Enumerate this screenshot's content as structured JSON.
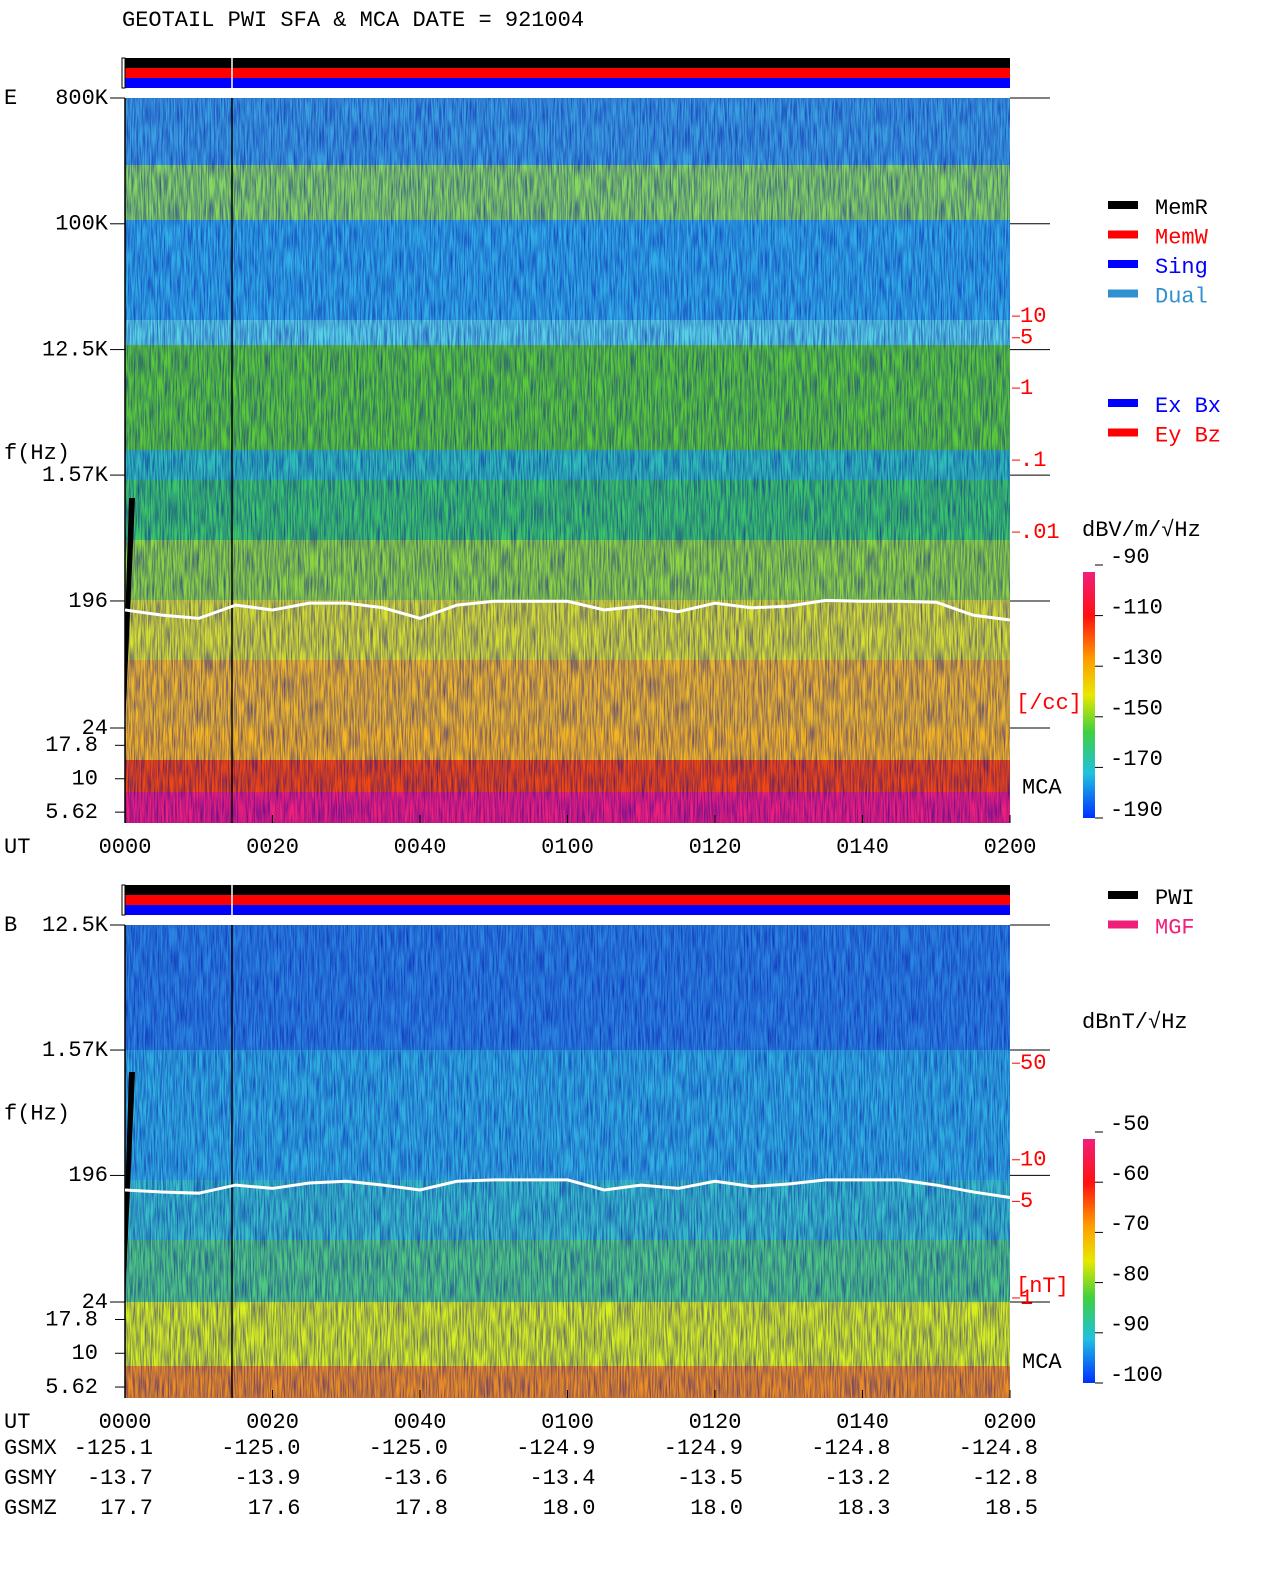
{
  "title": "GEOTAIL  PWI SFA & MCA   DATE = 921004",
  "chart_data": [
    {
      "type": "spectrogram",
      "panel_label": "E",
      "y_label": "f(Hz)",
      "x_label": "UT",
      "mca_label": "MCA",
      "log_y": true,
      "ylim": [
        24,
        800000
      ],
      "yticks": [
        {
          "value": 800000,
          "label": "800K"
        },
        {
          "value": 100000,
          "label": "100K"
        },
        {
          "value": 12500,
          "label": "12.5K"
        },
        {
          "value": 1570,
          "label": "1.57K"
        },
        196,
        24
      ],
      "mca_lim": [
        4.66,
        24
      ],
      "mca_ticks": [
        17.8,
        10,
        5.62
      ],
      "xlim": [
        0,
        120
      ],
      "xticks": [
        {
          "value": 0,
          "label": "0000"
        },
        {
          "value": 20,
          "label": "0020"
        },
        {
          "value": 40,
          "label": "0040"
        },
        {
          "value": 60,
          "label": "0100"
        },
        {
          "value": 80,
          "label": "0120"
        },
        {
          "value": 100,
          "label": "0140"
        },
        {
          "value": 120,
          "label": "0200"
        }
      ],
      "trace": {
        "color": "#ffffff",
        "x": [
          0,
          5,
          10,
          15,
          20,
          25,
          30,
          35,
          40,
          45,
          50,
          55,
          60,
          65,
          70,
          75,
          80,
          85,
          90,
          95,
          100,
          105,
          110,
          115,
          120
        ],
        "values": [
          169,
          155,
          147,
          183,
          169,
          189,
          189,
          175,
          147,
          183,
          195,
          195,
          195,
          169,
          180,
          164,
          189,
          175,
          180,
          198,
          195,
          195,
          192,
          155,
          143
        ]
      },
      "y2lim": [
        1.9e-05,
        10700
      ],
      "y2_color": "#ff0000",
      "y2_unit": "[/cc]",
      "y2ticks": [
        10,
        5,
        1,
        {
          "value": 0.1,
          "label": ".1"
        },
        {
          "value": 0.01,
          "label": ".01"
        }
      ],
      "colorbar": {
        "label": "dBV/m/√Hz",
        "lim": [
          -190,
          -90
        ],
        "ticks": [
          -90,
          -110,
          -130,
          -150,
          -170,
          -190
        ]
      },
      "legend": [
        {
          "name": "MemR",
          "color": "#000000"
        },
        {
          "name": "MemW",
          "color": "#ff0000"
        },
        {
          "name": "Sing",
          "color": "#0000ff"
        },
        {
          "name": "Dual",
          "color": "#3090d0"
        }
      ],
      "legend2": [
        {
          "name": "Ex Bx",
          "color": "#0000ff"
        },
        {
          "name": "Ey Bz",
          "color": "#ff0000"
        }
      ]
    },
    {
      "type": "spectrogram",
      "panel_label": "B",
      "y_label": "f(Hz)",
      "x_label": "UT",
      "mca_label": "MCA",
      "log_y": true,
      "ylim": [
        24,
        12500
      ],
      "yticks": [
        {
          "value": 12500,
          "label": "12.5K"
        },
        {
          "value": 1570,
          "label": "1.57K"
        },
        196,
        24
      ],
      "mca_lim": [
        4.66,
        24
      ],
      "mca_ticks": [
        17.8,
        10,
        5.62
      ],
      "xlim": [
        0,
        120
      ],
      "xticks": [
        {
          "value": 0,
          "label": "0000"
        },
        {
          "value": 20,
          "label": "0020"
        },
        {
          "value": 40,
          "label": "0040"
        },
        {
          "value": 60,
          "label": "0100"
        },
        {
          "value": 80,
          "label": "0120"
        },
        {
          "value": 100,
          "label": "0140"
        },
        {
          "value": 120,
          "label": "0200"
        }
      ],
      "trace": {
        "color": "#ffffff",
        "x": [
          0,
          5,
          10,
          15,
          20,
          25,
          30,
          35,
          40,
          45,
          50,
          55,
          60,
          65,
          70,
          75,
          80,
          85,
          90,
          95,
          100,
          105,
          110,
          115,
          120
        ],
        "values": [
          154,
          149,
          146,
          167,
          158,
          173,
          178,
          167,
          154,
          178,
          182,
          182,
          182,
          154,
          167,
          158,
          178,
          163,
          170,
          182,
          182,
          182,
          167,
          149,
          136
        ]
      },
      "y2lim": [
        0.935,
        500
      ],
      "y2_color": "#ff0000",
      "y2_unit": "[nT]",
      "y2ticks": [
        50,
        10,
        5,
        1
      ],
      "colorbar": {
        "label": "dBnT/√Hz",
        "lim": [
          -100,
          -50
        ],
        "ticks": [
          -50,
          -60,
          -70,
          -80,
          -90,
          -100
        ]
      },
      "legend": [
        {
          "name": "PWI",
          "color": "#000000"
        },
        {
          "name": "MGF",
          "color": "#f0207a"
        }
      ],
      "orbit": {
        "rows": [
          {
            "label": "GSMX",
            "values": [
              "-125.1",
              "-125.0",
              "-125.0",
              "-124.9",
              "-124.9",
              "-124.8",
              "-124.8"
            ]
          },
          {
            "label": "GSMY",
            "values": [
              "-13.7",
              "-13.9",
              "-13.6",
              "-13.4",
              "-13.5",
              "-13.2",
              "-12.8"
            ]
          },
          {
            "label": "GSMZ",
            "values": [
              "17.7",
              "17.6",
              "17.8",
              "18.0",
              "18.0",
              "18.3",
              "18.5"
            ]
          }
        ]
      }
    }
  ]
}
